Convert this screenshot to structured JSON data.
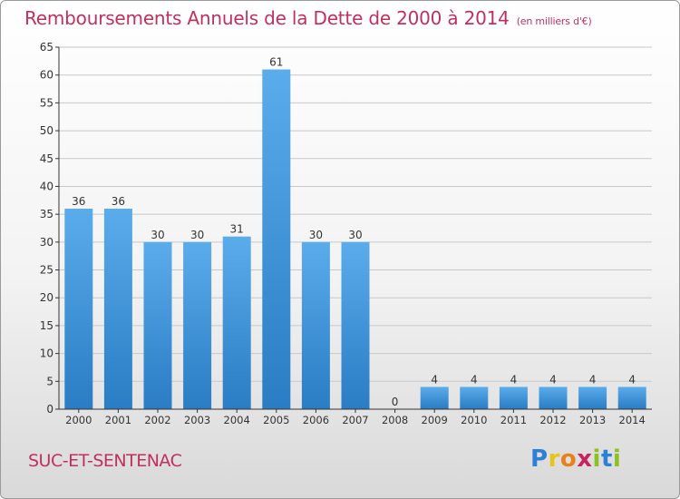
{
  "title": "Remboursements Annuels de la Dette de 2000 à 2014",
  "subtitle": "(en milliers d'€)",
  "commune": "SUC-ET-SENTENAC",
  "logo": {
    "text": "Proxiti",
    "letters": [
      {
        "ch": "P",
        "color": "#2e7fd6"
      },
      {
        "ch": "r",
        "color": "#e8c41b"
      },
      {
        "ch": "o",
        "color": "#e8811b"
      },
      {
        "ch": "x",
        "color": "#c9235f"
      },
      {
        "ch": "i",
        "color": "#8bc21f"
      },
      {
        "ch": "t",
        "color": "#2e7fd6"
      },
      {
        "ch": "i",
        "color": "#8bc21f"
      }
    ]
  },
  "colors": {
    "title": "#c0305e",
    "bar_top": "#5aaceb",
    "bar_bottom": "#2a7cc4",
    "grid": "#c8c8c8",
    "axis": "#333333"
  },
  "chart_data": {
    "type": "bar",
    "categories": [
      "2000",
      "2001",
      "2002",
      "2003",
      "2004",
      "2005",
      "2006",
      "2007",
      "2008",
      "2009",
      "2010",
      "2011",
      "2012",
      "2013",
      "2014"
    ],
    "values": [
      36,
      36,
      30,
      30,
      31,
      61,
      30,
      30,
      0,
      4,
      4,
      4,
      4,
      4,
      4
    ],
    "ylim": [
      0,
      65
    ],
    "yticks": [
      0,
      5,
      10,
      15,
      20,
      25,
      30,
      35,
      40,
      45,
      50,
      55,
      60,
      65
    ],
    "grid": true,
    "title": "Remboursements Annuels de la Dette de 2000 à 2014",
    "xlabel": "",
    "ylabel": ""
  }
}
